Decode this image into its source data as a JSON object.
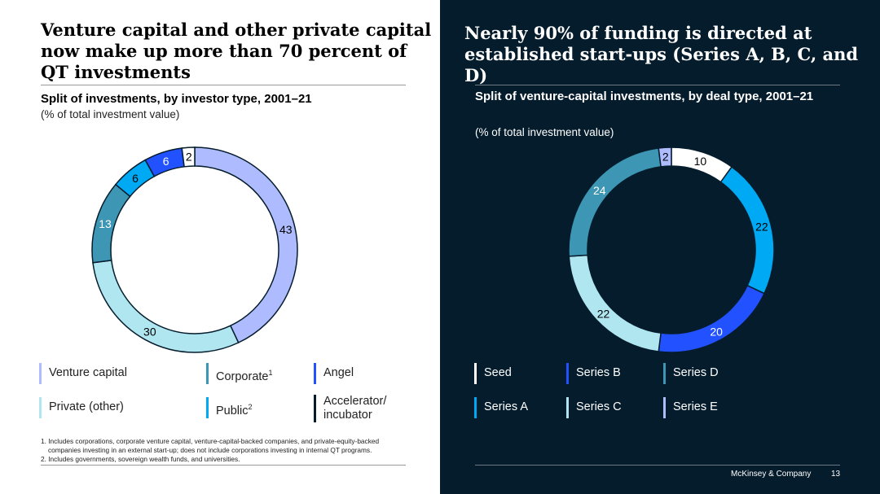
{
  "left_panel": {
    "headline": "Venture capital and other private capital now make up more than 70 percent of QT investments",
    "subtitle": "Split of investments, by investor type, 2001–21",
    "unit": "(% of total investment value)",
    "legend": [
      {
        "label": "Venture capital",
        "sup": "",
        "color": "#aebcff"
      },
      {
        "label": "Corporate",
        "sup": "1",
        "color": "#3c96b4"
      },
      {
        "label": "Angel",
        "sup": "",
        "color": "#2251ff"
      },
      {
        "label": "Private (other)",
        "sup": "",
        "color": "#afe6f0"
      },
      {
        "label": "Public",
        "sup": "2",
        "color": "#00a9f4"
      },
      {
        "label": "Accelerator/ incubator",
        "sup": "",
        "color": "#051c2c"
      }
    ],
    "footnotes": [
      "1. Includes corporations, corporate venture capital, venture-capital-backed companies, and private-equity-backed",
      "companies investing in an external start-up; does not include corporations investing in internal QT programs.",
      "2. Includes governments, sovereign wealth funds, and universities."
    ]
  },
  "right_panel": {
    "headline": "Nearly 90% of funding is directed at established start-ups (Series A, B, C, and D)",
    "subtitle": "Split of venture-capital investments, by deal type, 2001–21",
    "unit": "(% of total investment value)",
    "legend": [
      {
        "label": "Seed",
        "color": "#ffffff"
      },
      {
        "label": "Series B",
        "color": "#2251ff"
      },
      {
        "label": "Series D",
        "color": "#3c96b4"
      },
      {
        "label": "Series A",
        "color": "#00a9f4"
      },
      {
        "label": "Series C",
        "color": "#afe6f0"
      },
      {
        "label": "Series E",
        "color": "#aebcff"
      }
    ],
    "footer": {
      "company": "McKinsey & Company",
      "page": "13"
    }
  },
  "chart_data": [
    {
      "type": "pie",
      "variant": "donut",
      "categories": [
        "Venture capital",
        "Private (other)",
        "Corporate",
        "Public",
        "Angel",
        "Accelerator/incubator"
      ],
      "values": [
        43,
        30,
        13,
        6,
        6,
        2
      ],
      "colors": [
        "#aebcff",
        "#afe6f0",
        "#3c96b4",
        "#00a9f4",
        "#2251ff",
        "#ffffff"
      ],
      "label_colors": [
        "#000000",
        "#000000",
        "#ffffff",
        "#000000",
        "#ffffff",
        "#000000"
      ]
    },
    {
      "type": "pie",
      "variant": "donut",
      "categories": [
        "Seed",
        "Series A",
        "Series B",
        "Series C",
        "Series D",
        "Series E"
      ],
      "values": [
        10,
        22,
        20,
        22,
        24,
        2
      ],
      "colors": [
        "#ffffff",
        "#00a9f4",
        "#2251ff",
        "#afe6f0",
        "#3c96b4",
        "#aebcff"
      ],
      "label_colors": [
        "#000000",
        "#000000",
        "#ffffff",
        "#000000",
        "#ffffff",
        "#000000"
      ]
    }
  ]
}
